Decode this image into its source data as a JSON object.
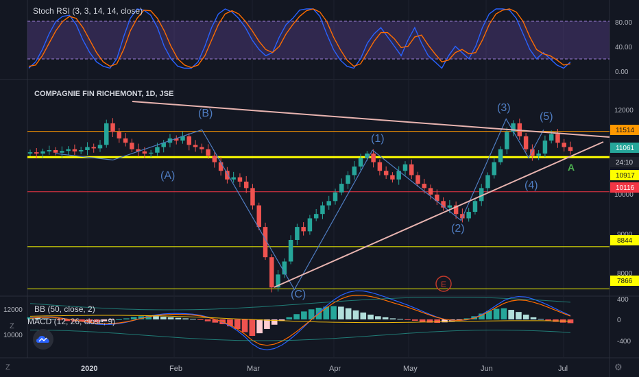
{
  "colors": {
    "bg": "#131722",
    "grid": "#1e222d",
    "panel_border": "#2a2e39",
    "up": "#26a69a",
    "down": "#ef5350",
    "wave": "#4f7dc2",
    "trend": "#e8b4b0",
    "yellow": "#ffff00",
    "orange": "#ff9800",
    "red": "#f23645"
  },
  "stoch_panel": {
    "title": "Stoch RSI (3, 3, 14, 14, close)",
    "ticks": [
      "80.00",
      "40.00",
      "0.00"
    ]
  },
  "main_panel": {
    "title": "COMPAGNIE FIN RICHEMONT, 1D, JSE",
    "ticks": [
      "12000",
      "10000",
      "9000",
      "8000"
    ],
    "price_labels": [
      {
        "text": "11514",
        "kind": "orange"
      },
      {
        "text": "11061",
        "kind": "teal"
      },
      {
        "text": "24:10",
        "kind": "dark"
      },
      {
        "text": "10917",
        "kind": "yellow"
      },
      {
        "text": "10116",
        "kind": "red"
      },
      {
        "text": "8844",
        "kind": "yellow"
      },
      {
        "text": "7866",
        "kind": "yellow"
      }
    ],
    "wave_labels": [
      "(A)",
      "(B)",
      "(C)",
      "(1)",
      "(2)",
      "(3)",
      "(4)",
      "(5)"
    ],
    "marker_a": "A",
    "marker_e": "E"
  },
  "macd_panel": {
    "bb_title": "BB (50, close, 2)",
    "macd_title": "MACD (12, 26, close, 9)",
    "left_ticks": [
      "12000",
      "10000"
    ],
    "right_ticks": [
      "400",
      "0",
      "-400"
    ]
  },
  "x_axis": {
    "labels": [
      "2020",
      "Feb",
      "Mar",
      "Apr",
      "May",
      "Jun",
      "Jul"
    ]
  },
  "corner": {
    "z_top": "Z",
    "z_bottom": "Z"
  },
  "chart_data": [
    {
      "type": "line",
      "title": "Stoch RSI (3, 3, 14, 14, close)",
      "ylim": [
        0,
        100
      ],
      "bands": [
        20,
        80
      ],
      "series": [
        {
          "color": "#2962ff",
          "values": [
            5,
            15,
            35,
            60,
            80,
            88,
            90,
            75,
            50,
            30,
            15,
            8,
            5,
            20,
            55,
            85,
            100,
            98,
            90,
            70,
            40,
            20,
            8,
            5,
            5,
            15,
            40,
            70,
            92,
            100,
            95,
            85,
            70,
            50,
            35,
            25,
            30,
            55,
            75,
            85,
            98,
            100,
            100,
            88,
            60,
            35,
            18,
            8,
            5,
            20,
            45,
            60,
            70,
            55,
            40,
            25,
            50,
            70,
            45,
            25,
            15,
            5,
            25,
            40,
            30,
            20,
            40,
            70,
            92,
            100,
            100,
            98,
            85,
            60,
            35,
            20,
            30,
            20,
            10,
            5,
            15
          ]
        },
        {
          "color": "#ff6d00",
          "values": [
            8,
            10,
            25,
            45,
            65,
            80,
            88,
            85,
            70,
            50,
            30,
            15,
            8,
            12,
            35,
            65,
            85,
            98,
            97,
            85,
            65,
            40,
            20,
            10,
            6,
            10,
            25,
            50,
            75,
            92,
            97,
            92,
            80,
            65,
            48,
            35,
            30,
            40,
            60,
            75,
            88,
            97,
            100,
            95,
            80,
            55,
            35,
            18,
            8,
            12,
            30,
            48,
            62,
            62,
            52,
            38,
            40,
            55,
            58,
            42,
            28,
            15,
            18,
            30,
            35,
            28,
            30,
            50,
            75,
            92,
            98,
            100,
            95,
            80,
            55,
            35,
            28,
            25,
            18,
            10,
            12
          ]
        }
      ]
    },
    {
      "type": "line",
      "title": "COMPAGNIE FIN RICHEMONT, 1D, JSE",
      "ylim": [
        7500,
        12800
      ],
      "horizontal_levels": [
        {
          "value": 11514,
          "color": "#ff9800"
        },
        {
          "value": 10917,
          "color": "#ffff00"
        },
        {
          "value": 10116,
          "color": "#f23645"
        },
        {
          "value": 8844,
          "color": "#ffff00"
        },
        {
          "value": 7866,
          "color": "#ffff00"
        }
      ],
      "wave_path": [
        {
          "x": "2019-12-20",
          "y": 11000,
          "label": ""
        },
        {
          "x": "2020-01-10",
          "y": 10850,
          "label": "(A)"
        },
        {
          "x": "2020-02-12",
          "y": 11550,
          "label": "(B)"
        },
        {
          "x": "2020-03-17",
          "y": 7850,
          "label": "(C)"
        },
        {
          "x": "2020-04-17",
          "y": 11080,
          "label": "(1)"
        },
        {
          "x": "2020-05-22",
          "y": 9450,
          "label": "(2)"
        },
        {
          "x": "2020-06-09",
          "y": 11800,
          "label": "(3)"
        },
        {
          "x": "2020-06-18",
          "y": 10900,
          "label": "(4)"
        },
        {
          "x": "2020-06-24",
          "y": 11550,
          "label": "(5)"
        }
      ],
      "close_series": [
        11030,
        11000,
        11050,
        11080,
        11020,
        11060,
        11100,
        11050,
        11080,
        11150,
        11120,
        11200,
        11700,
        11500,
        11350,
        11250,
        11100,
        11050,
        11000,
        11020,
        11150,
        11250,
        11350,
        11300,
        11400,
        11200,
        11150,
        11100,
        10950,
        10800,
        10600,
        10400,
        10450,
        10350,
        10200,
        9800,
        9300,
        8600,
        7900,
        8200,
        8500,
        9000,
        9300,
        9200,
        9500,
        9600,
        9800,
        9900,
        10100,
        10300,
        10500,
        10700,
        10900,
        11000,
        10800,
        10600,
        10500,
        10400,
        10600,
        10750,
        10500,
        10300,
        10200,
        10050,
        9900,
        9750,
        9800,
        9600,
        9500,
        9650,
        9900,
        10200,
        10500,
        10800,
        11100,
        11500,
        11700,
        11400,
        11100,
        10950,
        11000,
        11300,
        11450,
        11250,
        11150,
        11061
      ]
    },
    {
      "type": "bar",
      "title": "MACD (12, 26, close, 9)",
      "ylim": [
        -450,
        450
      ],
      "histogram": [
        40,
        35,
        20,
        10,
        -15,
        -30,
        -40,
        -45,
        -50,
        -55,
        -35,
        -15,
        0,
        20,
        45,
        60,
        70,
        60,
        50,
        40,
        30,
        20,
        10,
        -10,
        -35,
        -60,
        -90,
        -130,
        -180,
        -240,
        -310,
        -260,
        -180,
        -100,
        -30,
        40,
        100,
        150,
        190,
        220,
        240,
        250,
        240,
        210,
        170,
        130,
        90,
        60,
        40,
        20,
        10,
        -5,
        -25,
        -45,
        -60,
        -65,
        -55,
        -35,
        -10,
        20,
        60,
        110,
        160,
        200,
        210,
        180,
        140,
        90,
        40,
        10,
        -20,
        -45,
        -60,
        -70
      ]
    }
  ]
}
